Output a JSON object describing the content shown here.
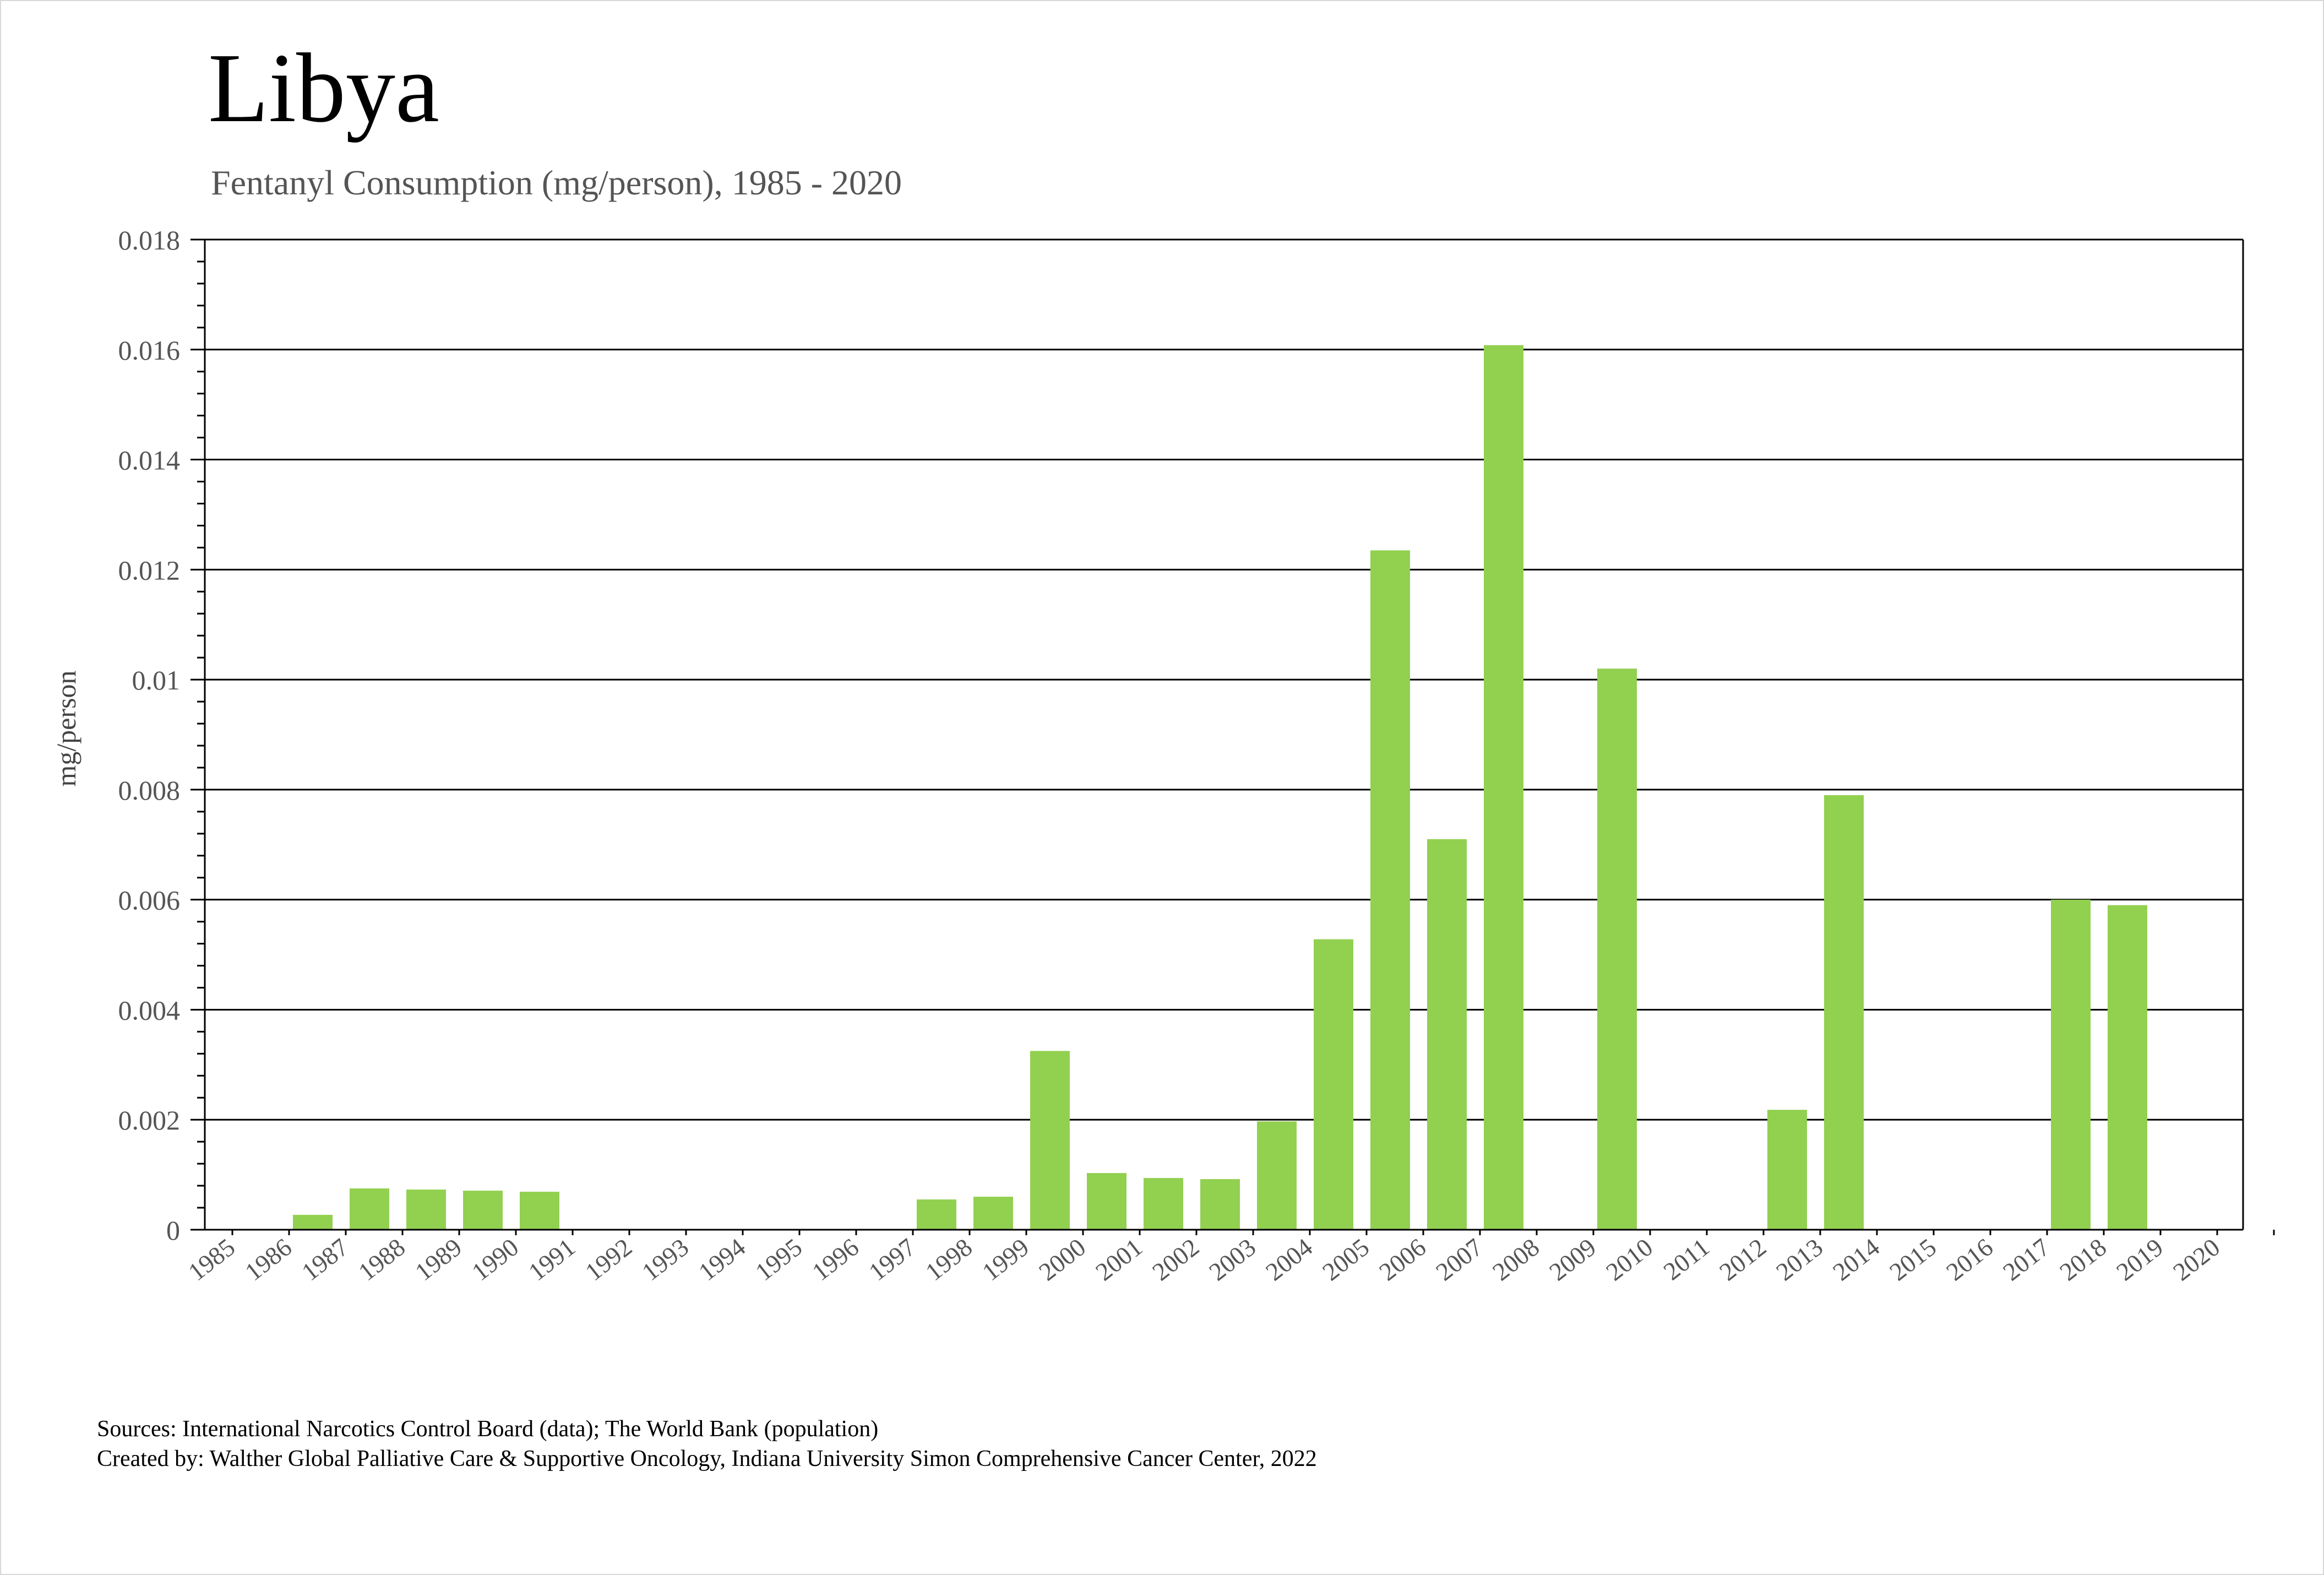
{
  "chart_data": {
    "type": "bar",
    "title": "Libya",
    "subtitle": "Fentanyl Consumption (mg/person), 1985 - 2020",
    "xlabel": "",
    "ylabel": "mg/person",
    "ylim": [
      0,
      0.018
    ],
    "yticks": [
      "0",
      "0.002",
      "0.004",
      "0.006",
      "0.008",
      "0.01",
      "0.012",
      "0.014",
      "0.016",
      "0.018"
    ],
    "grid": true,
    "legend": "none",
    "bar_color": "#92d050",
    "categories": [
      "1985",
      "1986",
      "1987",
      "1988",
      "1989",
      "1990",
      "1991",
      "1992",
      "1993",
      "1994",
      "1995",
      "1996",
      "1997",
      "1998",
      "1999",
      "2000",
      "2001",
      "2002",
      "2003",
      "2004",
      "2005",
      "2006",
      "2007",
      "2008",
      "2009",
      "2010",
      "2011",
      "2012",
      "2013",
      "2014",
      "2015",
      "2016",
      "2017",
      "2018",
      "2019",
      "2020"
    ],
    "values": [
      0,
      0.00027,
      0.00075,
      0.00073,
      0.00071,
      0.00069,
      0,
      0,
      0,
      0,
      0,
      0,
      0.00055,
      0.0006,
      0.00325,
      0.00103,
      0.00094,
      0.00092,
      0.00197,
      0.00528,
      0.01235,
      0.0071,
      0.01608,
      0,
      0.0102,
      0,
      0,
      0.00218,
      0.0079,
      0,
      0,
      0,
      0.006,
      0.0059,
      0,
      0
    ]
  },
  "footer": {
    "sources": "Sources: International Narcotics Control Board (data); The World Bank (population)",
    "created_by": "Created by: Walther Global Palliative Care & Supportive Oncology, Indiana University Simon Comprehensive Cancer Center, 2022"
  }
}
